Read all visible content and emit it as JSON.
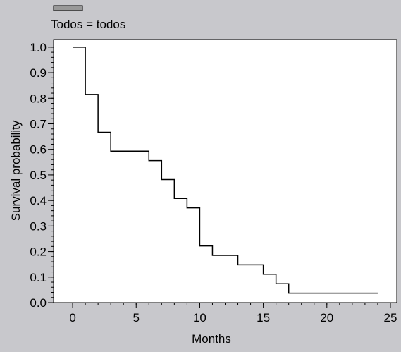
{
  "legend": {
    "label": "Todos = todos",
    "swatch_color": "#999999"
  },
  "colors": {
    "background": "#c8c8cc",
    "plot_area": "#ffffff",
    "line": "#000000"
  },
  "chart_data": {
    "type": "line",
    "step": true,
    "xlabel": "Months",
    "ylabel": "Survival probability",
    "xlim": [
      -1.5,
      25.5
    ],
    "ylim": [
      0.0,
      1.03
    ],
    "x_ticks": [
      0,
      5,
      10,
      15,
      20,
      25
    ],
    "y_ticks": [
      0.0,
      0.1,
      0.2,
      0.3,
      0.4,
      0.5,
      0.6,
      0.7,
      0.8,
      0.9,
      1.0
    ],
    "y_tick_labels": [
      "0.0",
      "0.1",
      "0.2",
      "0.3",
      "0.4",
      "0.5",
      "0.6",
      "0.7",
      "0.8",
      "0.9",
      "1.0"
    ],
    "x_minor_step": 1,
    "y_minor_step": 0.02,
    "grid": false,
    "legend_position": "top-left",
    "series": [
      {
        "name": "Todos = todos",
        "x": [
          0,
          1,
          2,
          3,
          6,
          7,
          8,
          9,
          10,
          11,
          13,
          15,
          16,
          17,
          24
        ],
        "y": [
          1.0,
          0.815,
          0.667,
          0.593,
          0.556,
          0.482,
          0.408,
          0.371,
          0.222,
          0.185,
          0.148,
          0.111,
          0.074,
          0.037,
          0.037
        ]
      }
    ]
  }
}
